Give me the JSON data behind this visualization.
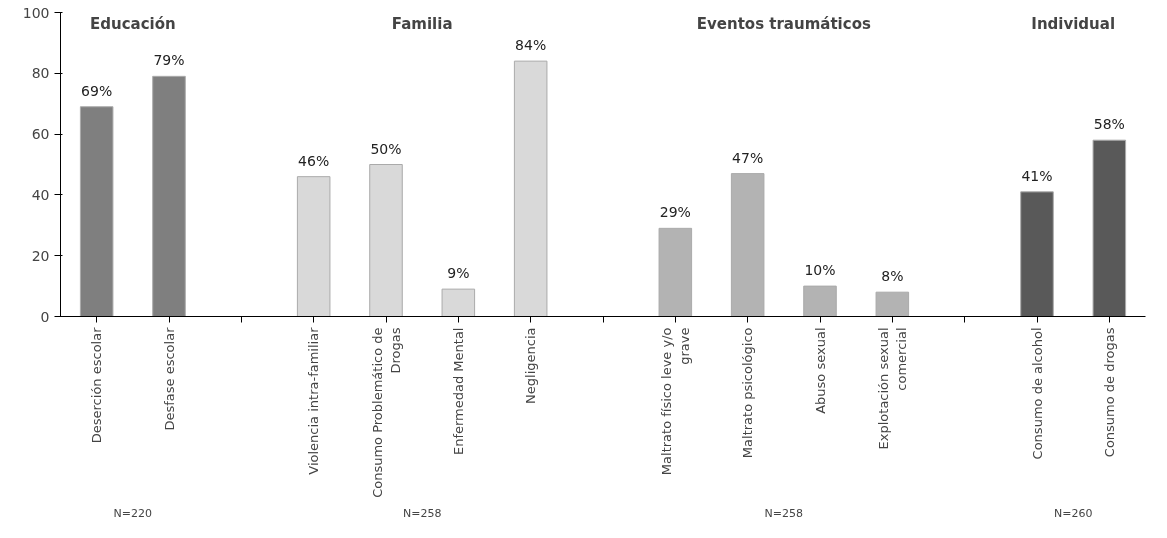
{
  "chart_data": {
    "type": "bar",
    "categories": [
      "Deserción escolar",
      "Desfase escolar",
      null,
      "Violencia intra-familiar",
      "Consumo Problemático de Drogas",
      "Enfermedad Mental",
      "Negligencia",
      null,
      "Maltrato físico leve y/o grave",
      "Maltrato psicológico",
      "Abuso sexual",
      "Explotación sexual comercial",
      null,
      "Consumo de alcohol",
      "Consumo de drogas"
    ],
    "values": [
      69,
      79,
      null,
      46,
      50,
      9,
      84,
      null,
      29,
      47,
      10,
      8,
      null,
      41,
      58
    ],
    "colors": [
      "#7f7f7f",
      "#7f7f7f",
      "#ffffff",
      "#d9d9d9",
      "#d9d9d9",
      "#d9d9d9",
      "#d9d9d9",
      "#ffffff",
      "#b3b3b3",
      "#b3b3b3",
      "#b3b3b3",
      "#b3b3b3",
      "#ffffff",
      "#595959",
      "#595959"
    ],
    "value_labels": [
      "69%",
      "79%",
      null,
      "46%",
      "50%",
      "9%",
      "84%",
      null,
      "29%",
      "47%",
      "10%",
      "8%",
      null,
      "41%",
      "58%"
    ],
    "ylim": [
      0,
      100
    ],
    "yticks": [
      0,
      20,
      40,
      60,
      80,
      100
    ],
    "grid": false,
    "annotations": [
      "Educación",
      "Familia",
      "Eventos traumáticos",
      "Individual",
      "N=220",
      "N=258",
      "N=258",
      "N=260"
    ]
  }
}
